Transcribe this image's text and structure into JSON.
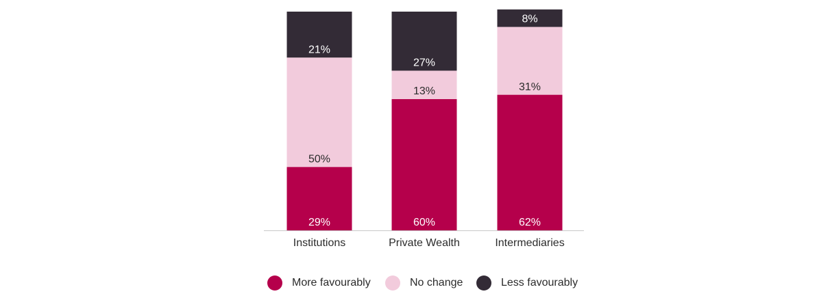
{
  "chart_data": {
    "type": "stacked_bar",
    "categories": [
      "Institutions",
      "Private Wealth",
      "Intermediaries"
    ],
    "series": [
      {
        "name": "More favourably",
        "color": "#b5004b",
        "label_color": "#ffffff",
        "values": [
          29,
          60,
          62
        ],
        "value_labels": [
          "29%",
          "60%",
          "62%"
        ]
      },
      {
        "name": "No change",
        "color": "#f2cbdc",
        "label_color": "#2b2b2b",
        "values": [
          50,
          13,
          31
        ],
        "value_labels": [
          "50%",
          "13%",
          "31%"
        ]
      },
      {
        "name": "Less favourably",
        "color": "#332b36",
        "label_color": "#ffffff",
        "values": [
          21,
          27,
          8
        ],
        "value_labels": [
          "21%",
          "27%",
          "8%"
        ]
      }
    ],
    "legend": "bottom"
  }
}
